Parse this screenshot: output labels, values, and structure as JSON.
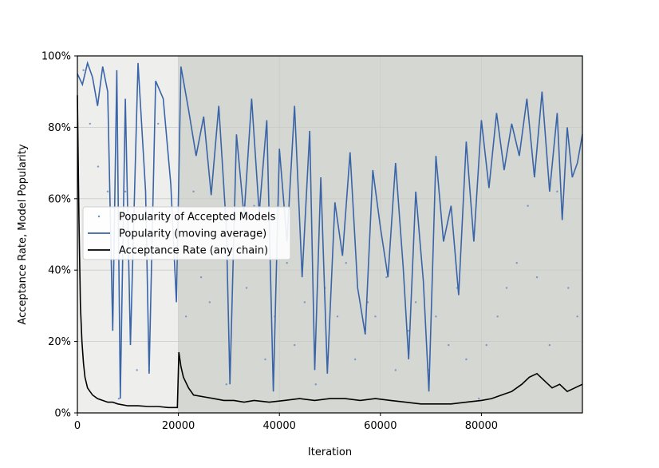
{
  "chart_data": {
    "type": "line",
    "xlabel": "Iteration",
    "ylabel": "Acceptance Rate, Model Popularity",
    "xlim": [
      0,
      100000
    ],
    "ylim": [
      0,
      1
    ],
    "x_ticks": [
      0,
      20000,
      40000,
      60000,
      80000
    ],
    "x_tick_labels": [
      "0",
      "20000",
      "40000",
      "60000",
      "80000"
    ],
    "y_ticks": [
      0,
      0.2,
      0.4,
      0.6,
      0.8,
      1.0
    ],
    "y_tick_labels": [
      "0%",
      "20%",
      "40%",
      "60%",
      "80%",
      "100%"
    ],
    "grid": true,
    "legend_position": "center-left",
    "burn_in_shaded_region": [
      0,
      20000
    ],
    "colors": {
      "burnin_background": "#eeefed",
      "sampling_background": "#d4d7d2",
      "popularity": "#3a64a8",
      "acceptance": "#000000",
      "scatter": "#6b8cc0"
    },
    "series": [
      {
        "name": "Popularity of Accepted Models",
        "kind": "scatter",
        "x": [
          1200,
          2500,
          4100,
          6000,
          8200,
          9500,
          11800,
          14200,
          16000,
          18300,
          21500,
          23000,
          24500,
          26200,
          28000,
          29500,
          31200,
          33500,
          35000,
          37200,
          39100,
          41500,
          43000,
          45000,
          47200,
          49000,
          51500,
          53200,
          55000,
          57500,
          59000,
          61200,
          63000,
          65500,
          67000,
          69500,
          71000,
          73500,
          75200,
          77000,
          79500,
          81000,
          83200,
          85000,
          87000,
          89200,
          91000,
          93500,
          95000,
          97200,
          99000
        ],
        "y": [
          0.96,
          0.81,
          0.69,
          0.62,
          0.04,
          0.62,
          0.12,
          0.12,
          0.81,
          0.54,
          0.27,
          0.62,
          0.38,
          0.31,
          0.46,
          0.08,
          0.54,
          0.35,
          0.58,
          0.15,
          0.27,
          0.42,
          0.19,
          0.31,
          0.08,
          0.35,
          0.27,
          0.42,
          0.15,
          0.31,
          0.27,
          0.38,
          0.12,
          0.23,
          0.31,
          0.12,
          0.27,
          0.19,
          0.35,
          0.15,
          0.04,
          0.19,
          0.27,
          0.35,
          0.42,
          0.58,
          0.38,
          0.19,
          0.62,
          0.35,
          0.27
        ]
      },
      {
        "name": "Popularity (moving average)",
        "kind": "line",
        "x": [
          0,
          1000,
          2000,
          3000,
          4000,
          5000,
          6000,
          7000,
          7800,
          8500,
          9500,
          10500,
          12000,
          13500,
          14200,
          15500,
          17000,
          18500,
          19600,
          20500,
          22000,
          23500,
          25000,
          26500,
          28000,
          29500,
          30200,
          31500,
          33000,
          34500,
          36000,
          37500,
          38800,
          40000,
          41500,
          43000,
          44500,
          46000,
          47000,
          48200,
          49500,
          51000,
          52500,
          54000,
          55500,
          57000,
          58500,
          60000,
          61500,
          63000,
          64500,
          65600,
          67000,
          68500,
          69600,
          71000,
          72500,
          74000,
          75500,
          77000,
          78500,
          80000,
          81500,
          83000,
          84500,
          86000,
          87500,
          89000,
          90500,
          92000,
          93500,
          95000,
          96000,
          97000,
          98000,
          99000,
          100000
        ],
        "y": [
          0.95,
          0.92,
          0.98,
          0.94,
          0.86,
          0.97,
          0.9,
          0.23,
          0.96,
          0.04,
          0.88,
          0.19,
          0.98,
          0.62,
          0.11,
          0.93,
          0.88,
          0.64,
          0.31,
          0.97,
          0.85,
          0.72,
          0.83,
          0.61,
          0.86,
          0.52,
          0.08,
          0.78,
          0.55,
          0.88,
          0.56,
          0.82,
          0.06,
          0.74,
          0.48,
          0.86,
          0.38,
          0.79,
          0.12,
          0.66,
          0.11,
          0.59,
          0.44,
          0.73,
          0.35,
          0.22,
          0.68,
          0.52,
          0.38,
          0.7,
          0.41,
          0.15,
          0.62,
          0.37,
          0.06,
          0.72,
          0.48,
          0.58,
          0.33,
          0.76,
          0.48,
          0.82,
          0.63,
          0.84,
          0.68,
          0.81,
          0.72,
          0.88,
          0.66,
          0.9,
          0.62,
          0.84,
          0.54,
          0.8,
          0.66,
          0.7,
          0.78
        ]
      },
      {
        "name": "Acceptance Rate (any chain)",
        "kind": "line",
        "x": [
          0,
          300,
          600,
          900,
          1200,
          1500,
          2000,
          2500,
          3000,
          4000,
          5000,
          6000,
          7000,
          8000,
          10000,
          12000,
          14000,
          16000,
          18000,
          19800,
          20100,
          20500,
          21000,
          22000,
          23000,
          25000,
          27000,
          29000,
          31000,
          33000,
          35000,
          38000,
          41000,
          44000,
          47000,
          50000,
          53000,
          56000,
          59000,
          62000,
          65000,
          68000,
          71000,
          74000,
          77000,
          80000,
          82000,
          84000,
          86000,
          88000,
          89500,
          91000,
          92500,
          94000,
          95500,
          97000,
          98500,
          100000
        ],
        "y": [
          0.89,
          0.55,
          0.3,
          0.2,
          0.14,
          0.1,
          0.07,
          0.06,
          0.05,
          0.04,
          0.035,
          0.03,
          0.03,
          0.025,
          0.02,
          0.02,
          0.018,
          0.018,
          0.015,
          0.015,
          0.17,
          0.13,
          0.1,
          0.07,
          0.05,
          0.045,
          0.04,
          0.035,
          0.035,
          0.03,
          0.035,
          0.03,
          0.035,
          0.04,
          0.035,
          0.04,
          0.04,
          0.035,
          0.04,
          0.035,
          0.03,
          0.025,
          0.025,
          0.025,
          0.03,
          0.035,
          0.04,
          0.05,
          0.06,
          0.08,
          0.1,
          0.11,
          0.09,
          0.07,
          0.08,
          0.06,
          0.07,
          0.08
        ]
      }
    ]
  }
}
